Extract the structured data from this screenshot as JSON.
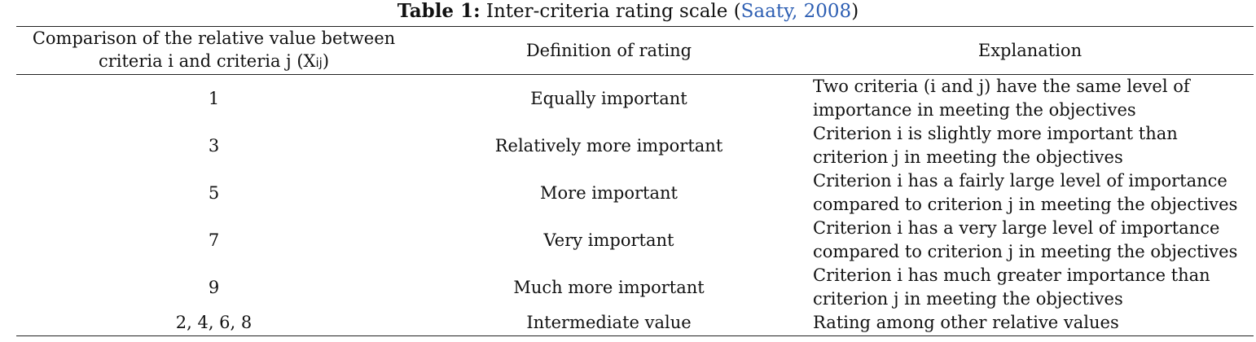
{
  "caption": {
    "label": "Table 1:",
    "title": " Inter-criteria rating scale (",
    "citation": "Saaty, 2008",
    "close": ")"
  },
  "table": {
    "headers": {
      "comparison_line1": "Comparison of the relative value between",
      "comparison_line2_prefix": "criteria i and criteria j (X",
      "comparison_subscript": "ij",
      "comparison_line2_suffix": ")",
      "definition": "Definition of rating",
      "explanation": "Explanation"
    },
    "rows": [
      {
        "value": "1",
        "definition": "Equally important",
        "explanation_line1": "Two criteria (i and j) have the same level of",
        "explanation_line2": "importance in meeting the objectives"
      },
      {
        "value": "3",
        "definition": "Relatively more important",
        "explanation_line1": "Criterion i is slightly more important than",
        "explanation_line2": "criterion j in meeting the objectives"
      },
      {
        "value": "5",
        "definition": "More important",
        "explanation_line1": "Criterion i has a fairly large level of importance",
        "explanation_line2": "compared to criterion j in meeting the objectives"
      },
      {
        "value": "7",
        "definition": "Very important",
        "explanation_line1": "Criterion i has a very large level of importance",
        "explanation_line2": "compared to criterion j in meeting the objectives"
      },
      {
        "value": "9",
        "definition": "Much more important",
        "explanation_line1": "Criterion i has much greater importance than",
        "explanation_line2": "criterion j in meeting the objectives"
      },
      {
        "value": "2, 4, 6, 8",
        "definition": "Intermediate value",
        "explanation_line1": "Rating among other relative values"
      }
    ]
  },
  "colors": {
    "link": "#2e5fb3",
    "text": "#111111",
    "rule": "#222222"
  }
}
